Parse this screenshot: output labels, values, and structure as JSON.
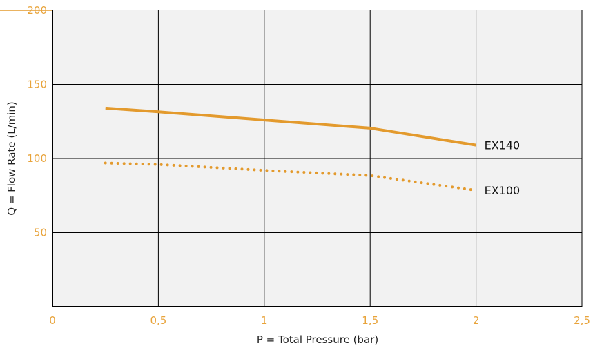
{
  "chart_data": {
    "type": "line",
    "xlabel": "P = Total Pressure (bar)",
    "ylabel": "Q = Flow Rate (L/min)",
    "xlim": [
      0,
      2.5
    ],
    "ylim": [
      0,
      200
    ],
    "xticks": [
      0,
      0.5,
      1,
      1.5,
      2,
      2.5
    ],
    "xtick_labels": [
      "0",
      "0,5",
      "1",
      "1,5",
      "2",
      "2,5"
    ],
    "yticks": [
      50,
      100,
      150,
      200
    ],
    "ytick_labels": [
      "50",
      "100",
      "150",
      "200"
    ],
    "grid": true,
    "colors": {
      "accent": "#E39A2D",
      "tick": "#E8A33A",
      "plot_bg": "#F2F2F2",
      "grid": "#000000"
    },
    "series": [
      {
        "name": "EX140",
        "style": "solid",
        "x": [
          0.25,
          0.5,
          1,
          1.5,
          2
        ],
        "y": [
          134,
          131.5,
          126,
          120.5,
          109
        ]
      },
      {
        "name": "EX100",
        "style": "dotted",
        "x": [
          0.25,
          0.5,
          1,
          1.5,
          2
        ],
        "y": [
          97,
          96,
          92,
          88.5,
          78.5
        ]
      }
    ]
  }
}
